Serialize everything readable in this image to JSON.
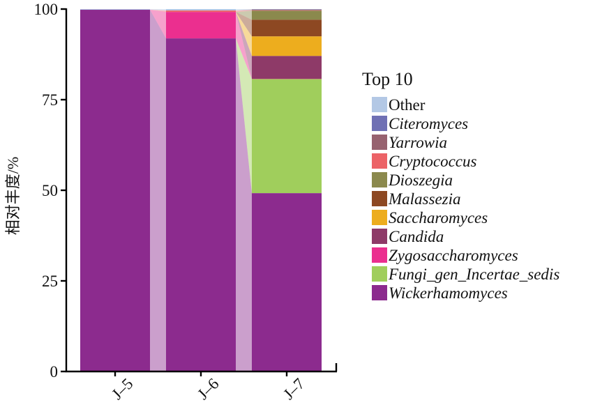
{
  "chart_data": {
    "type": "bar",
    "subtype": "stacked-percentage-with-connector-ribbons",
    "title": "",
    "xlabel": "",
    "ylabel": "相对丰度/%",
    "ylim": [
      0,
      100
    ],
    "yticks": [
      0,
      25,
      50,
      75,
      100
    ],
    "grid": false,
    "legend_position": "right",
    "legend_title": "Top 10",
    "categories": [
      "J–5",
      "J–6",
      "J–7"
    ],
    "series": [
      {
        "name": "Other",
        "italic": false,
        "color": "#b3c8e5",
        "values": [
          0.2,
          0.4,
          0.1
        ]
      },
      {
        "name": "Citeromyces",
        "italic": true,
        "color": "#6f70b4",
        "values": [
          0,
          0,
          0.05
        ]
      },
      {
        "name": "Yarrowia",
        "italic": true,
        "color": "#97626f",
        "values": [
          0,
          0,
          0.2
        ]
      },
      {
        "name": "Cryptococcus",
        "italic": true,
        "color": "#ec6367",
        "values": [
          0,
          0.4,
          0.1
        ]
      },
      {
        "name": "Dioszegia",
        "italic": true,
        "color": "#8b894d",
        "values": [
          0,
          0,
          2.5
        ]
      },
      {
        "name": "Malassezia",
        "italic": true,
        "color": "#8d4822",
        "values": [
          0,
          0,
          4.6
        ]
      },
      {
        "name": "Saccharomyces",
        "italic": true,
        "color": "#edad1e",
        "values": [
          0,
          0,
          5.4
        ]
      },
      {
        "name": "Candida",
        "italic": true,
        "color": "#8e3a68",
        "values": [
          0,
          0,
          6.3
        ]
      },
      {
        "name": "Zygosaccharomyces",
        "italic": true,
        "color": "#eb2f8f",
        "values": [
          0,
          7.3,
          0.05
        ]
      },
      {
        "name": "Fungi_gen_Incertae_sedis",
        "italic": true,
        "color": "#a0ce5c",
        "values": [
          0,
          0,
          31.5
        ]
      },
      {
        "name": "Wickerhamomyces",
        "italic": true,
        "color": "#8c2b8e",
        "values": [
          99.8,
          91.9,
          49.2
        ]
      }
    ],
    "axis_color": "#000000",
    "ribbon_opacity": 0.45
  }
}
